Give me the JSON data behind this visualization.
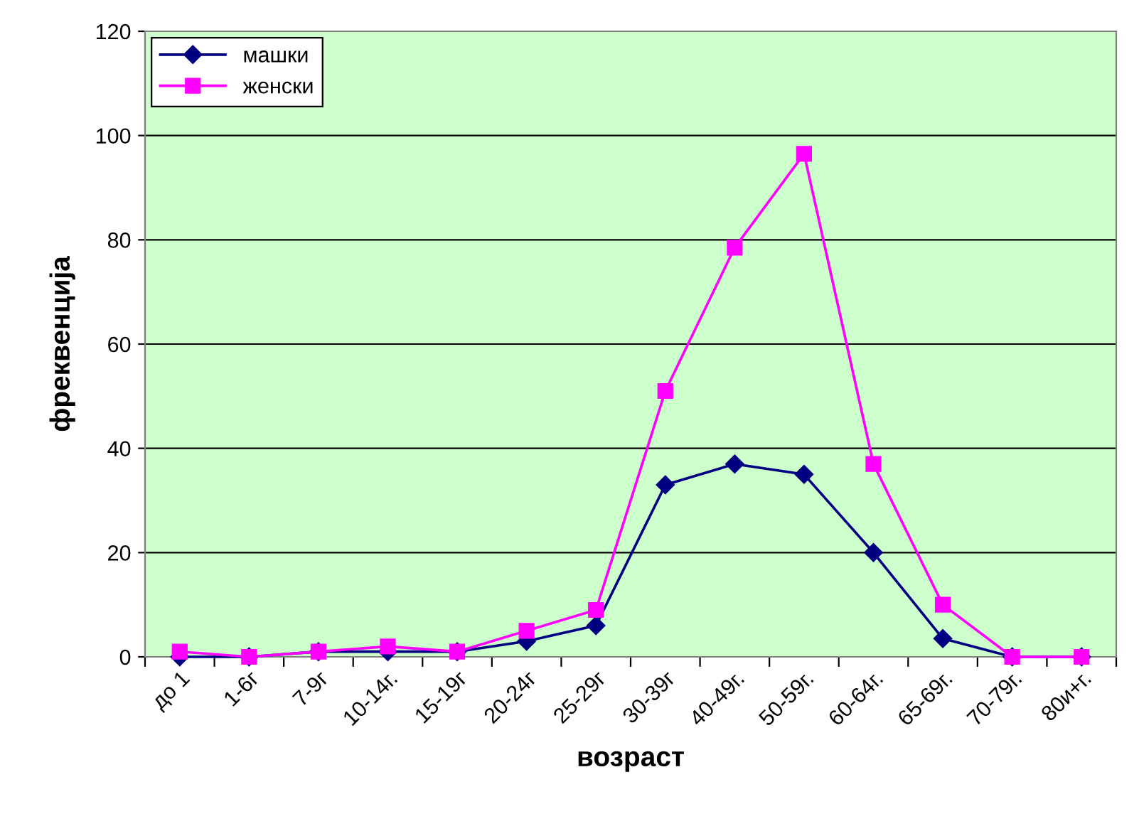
{
  "chart_data": {
    "type": "line",
    "xlabel": "возраст",
    "ylabel": "фреквенција",
    "categories": [
      "до 1",
      "1-6г",
      "7-9г",
      "10-14г.",
      "15-19г",
      "20-24г",
      "25-29г",
      "30-39г",
      "40-49г.",
      "50-59г.",
      "60-64г.",
      "65-69г.",
      "70-79г.",
      "80и+г."
    ],
    "series": [
      {
        "name": "машки",
        "color": "#000080",
        "marker": "diamond",
        "values": [
          0,
          0,
          1,
          1,
          1,
          3,
          6,
          33,
          37,
          35,
          20,
          3.5,
          0,
          0
        ]
      },
      {
        "name": "женски",
        "color": "#ff00ff",
        "marker": "square",
        "values": [
          1,
          0,
          1,
          2,
          1,
          5,
          9,
          51,
          78.5,
          96.5,
          37,
          10,
          0,
          0
        ]
      }
    ],
    "ylim": [
      0,
      120
    ],
    "yticks": [
      0,
      20,
      40,
      60,
      80,
      100,
      120
    ],
    "grid": "y",
    "legend": "top left"
  }
}
